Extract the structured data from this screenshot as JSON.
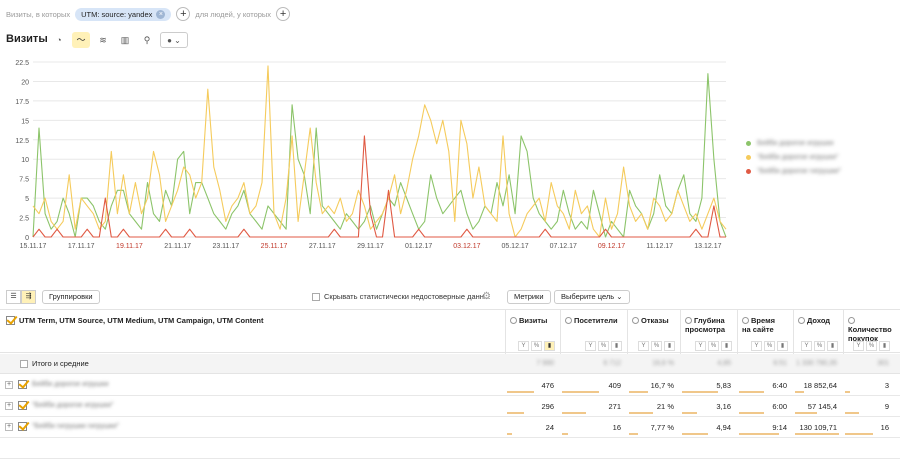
{
  "segment": {
    "prefix": "Визиты, в которых",
    "chip": "UTM: source: yandex",
    "suffix": "для людей, у которых",
    "add": "+"
  },
  "title": "Визиты",
  "chart_controls": [
    "pie-chart-icon",
    "line-chart-icon",
    "area-chart-icon",
    "column-chart-icon",
    "map-icon",
    "options-dropdown-icon"
  ],
  "chart_data": {
    "type": "line",
    "ylim": [
      0,
      22.5
    ],
    "yticks": [
      "0",
      "2.5",
      "5",
      "7.5",
      "10",
      "12.5",
      "15",
      "17.5",
      "20",
      "22.5"
    ],
    "xlabels": [
      {
        "text": "15.11.17",
        "i": 0,
        "red": false
      },
      {
        "text": "17.11.17",
        "i": 8,
        "red": false
      },
      {
        "text": "19.11.17",
        "i": 16,
        "red": true
      },
      {
        "text": "21.11.17",
        "i": 24,
        "red": false
      },
      {
        "text": "23.11.17",
        "i": 32,
        "red": false
      },
      {
        "text": "25.11.17",
        "i": 40,
        "red": true
      },
      {
        "text": "27.11.17",
        "i": 48,
        "red": false
      },
      {
        "text": "29.11.17",
        "i": 56,
        "red": false
      },
      {
        "text": "01.12.17",
        "i": 64,
        "red": false
      },
      {
        "text": "03.12.17",
        "i": 72,
        "red": true
      },
      {
        "text": "05.12.17",
        "i": 80,
        "red": false
      },
      {
        "text": "07.12.17",
        "i": 88,
        "red": false
      },
      {
        "text": "09.12.17",
        "i": 96,
        "red": true
      },
      {
        "text": "11.12.17",
        "i": 104,
        "red": false
      },
      {
        "text": "13.12.17",
        "i": 112,
        "red": false
      }
    ],
    "series": [
      {
        "color": "#8cc46a",
        "values": [
          0,
          14,
          3,
          1,
          2,
          5,
          3,
          0,
          5,
          5,
          4,
          2,
          1,
          4,
          6,
          6,
          3,
          2,
          1,
          7,
          3,
          2,
          6,
          4,
          10,
          11,
          3,
          7,
          7,
          5,
          3,
          2,
          1,
          3,
          4,
          6,
          3,
          2,
          1,
          4,
          3,
          2,
          1,
          17,
          10,
          8,
          3,
          14,
          4,
          3,
          2,
          1,
          3,
          2,
          1,
          2,
          4,
          1,
          3,
          5,
          4,
          7,
          5,
          3,
          1,
          2,
          8,
          5,
          3,
          4,
          5,
          6,
          3,
          1,
          2,
          4,
          3,
          7,
          4,
          8,
          3,
          13,
          11,
          5,
          3,
          2,
          1,
          2,
          6,
          3,
          1,
          2,
          1,
          6,
          3,
          0,
          2,
          1,
          0,
          6,
          4,
          3,
          1,
          3,
          8,
          4,
          3,
          6,
          8,
          3,
          2,
          5,
          21,
          10,
          2,
          0
        ]
      },
      {
        "color": "#f5cb5c",
        "values": [
          4,
          3,
          5,
          2,
          1,
          2,
          8,
          1,
          5,
          4,
          3,
          1,
          2,
          11,
          3,
          8,
          3,
          7,
          3,
          5,
          11,
          8,
          2,
          4,
          6,
          9,
          8,
          5,
          7,
          19,
          9,
          6,
          2,
          4,
          5,
          7,
          3,
          4,
          7,
          22,
          3,
          1,
          5,
          13,
          2,
          8,
          14,
          7,
          3,
          4,
          3,
          5,
          2,
          3,
          6,
          4,
          1,
          2,
          3,
          5,
          8,
          3,
          6,
          10,
          13,
          17,
          15,
          12,
          15,
          11,
          2,
          15,
          12,
          5,
          9,
          4,
          3,
          2,
          13,
          3,
          0,
          1,
          3,
          4,
          5,
          2,
          7,
          4,
          3,
          1,
          6,
          3,
          4,
          1,
          0,
          5,
          1,
          3,
          9,
          4,
          2,
          3,
          1,
          5,
          4,
          2,
          3,
          6,
          4,
          2,
          3,
          1,
          3,
          5,
          2,
          1
        ]
      },
      {
        "color": "#e05a44",
        "values": [
          0,
          1,
          0,
          0,
          1,
          0,
          0,
          0,
          0,
          1,
          0,
          0,
          5,
          0,
          0,
          1,
          0,
          0,
          0,
          0,
          0,
          0,
          1,
          0,
          0,
          0,
          1,
          0,
          0,
          0,
          0,
          0,
          0,
          0,
          0,
          1,
          0,
          0,
          0,
          0,
          0,
          0,
          0,
          0,
          0,
          0,
          0,
          0,
          0,
          0,
          1,
          0,
          0,
          0,
          0,
          13,
          3,
          0,
          0,
          6,
          0,
          0,
          0,
          0,
          1,
          0,
          0,
          0,
          0,
          0,
          0,
          0,
          1,
          0,
          0,
          0,
          0,
          0,
          0,
          0,
          0,
          0,
          0,
          0,
          0,
          1,
          0,
          0,
          0,
          0,
          0,
          0,
          0,
          0,
          0,
          1,
          0,
          0,
          0,
          0,
          0,
          0,
          0,
          0,
          0,
          0,
          0,
          0,
          0,
          0,
          1,
          0,
          0,
          4,
          0,
          0
        ]
      }
    ]
  },
  "legend": [
    {
      "color": "#8cc46a",
      "label": "Бейби дорогое игрушки"
    },
    {
      "color": "#f5cb5c",
      "label": "\"Бейби дорогое игрушки\""
    },
    {
      "color": "#e05a44",
      "label": "\"Бейби дорогое гигрушки\""
    }
  ],
  "toolbar": {
    "groupings": "Группировки",
    "hide_stat": "Скрывать статистически недостоверные данн...",
    "metrics": "Метрики",
    "goal": "Выберите цель"
  },
  "table": {
    "dimensions": "UTM Term, UTM Source, UTM Medium, UTM Campaign, UTM Content",
    "columns": [
      {
        "name": "Визиты",
        "l1": "Визиты",
        "l2": ""
      },
      {
        "name": "Посетители",
        "l1": "Посетители",
        "l2": ""
      },
      {
        "name": "Отказы",
        "l1": "Отказы",
        "l2": ""
      },
      {
        "name": "Глубина просмотра",
        "l1": "Глубина",
        "l2": "просмотра"
      },
      {
        "name": "Время на сайте",
        "l1": "Время",
        "l2": "на сайте"
      },
      {
        "name": "Доход",
        "l1": "Доход",
        "l2": ""
      },
      {
        "name": "Количество покупок",
        "l1": "Количество",
        "l2": "покупок"
      }
    ],
    "totals_label": "Итого и средние",
    "totals": [
      "7 990",
      "6 712",
      "16,6 %",
      "4,85",
      "6:51",
      "1 330 790,35",
      "301"
    ],
    "rows": [
      {
        "label": "Бейби дорогое игрушки",
        "values": [
          "476",
          "409",
          "16,7 %",
          "5,83",
          "6:40",
          "18 852,64",
          "3"
        ]
      },
      {
        "label": "\"Бейби дорогое игрушки\"",
        "values": [
          "296",
          "271",
          "21 %",
          "3,16",
          "6:00",
          "57 145,4",
          "9"
        ]
      },
      {
        "label": "\"Бейби гигрушки гигрушки\"",
        "values": [
          "24",
          "16",
          "7,77 %",
          "4,94",
          "9:14",
          "130 109,71",
          "16"
        ]
      },
      {
        "label": "",
        "values": [
          "",
          "",
          "",
          "",
          "",
          "",
          ""
        ]
      }
    ],
    "bars": [
      [
        0.55,
        0.6,
        0.4,
        0.7,
        0.5,
        0.2,
        0.1
      ],
      [
        0.35,
        0.4,
        0.5,
        0.3,
        0.5,
        0.5,
        0.3
      ],
      [
        0.1,
        0.1,
        0.2,
        0.5,
        0.8,
        1.0,
        0.6
      ]
    ]
  },
  "view_icons": [
    "list-view-icon",
    "tree-view-icon"
  ]
}
